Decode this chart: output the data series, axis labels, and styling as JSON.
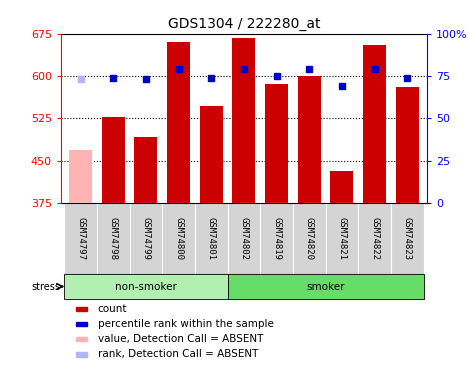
{
  "title": "GDS1304 / 222280_at",
  "samples": [
    "GSM74797",
    "GSM74798",
    "GSM74799",
    "GSM74800",
    "GSM74801",
    "GSM74802",
    "GSM74819",
    "GSM74820",
    "GSM74821",
    "GSM74822",
    "GSM74823"
  ],
  "bar_values": [
    468,
    527,
    492,
    660,
    547,
    668,
    585,
    600,
    432,
    655,
    581
  ],
  "bar_colors": [
    "#ffb3b3",
    "#cc0000",
    "#cc0000",
    "#cc0000",
    "#cc0000",
    "#cc0000",
    "#cc0000",
    "#cc0000",
    "#cc0000",
    "#cc0000",
    "#cc0000"
  ],
  "rank_values": [
    73,
    74,
    73,
    79,
    74,
    79,
    75,
    79,
    69,
    79,
    74
  ],
  "rank_colors": [
    "#b3b3ff",
    "#0000cc",
    "#0000cc",
    "#0000cc",
    "#0000cc",
    "#0000cc",
    "#0000cc",
    "#0000cc",
    "#0000cc",
    "#0000cc",
    "#0000cc"
  ],
  "ylim_left": [
    375,
    675
  ],
  "ylim_right": [
    0,
    100
  ],
  "yticks_left": [
    375,
    450,
    525,
    600,
    675
  ],
  "yticks_right": [
    0,
    25,
    50,
    75,
    100
  ],
  "ytick_labels_right": [
    "0",
    "25",
    "50",
    "75",
    "100%"
  ],
  "hlines": [
    450,
    525,
    600
  ],
  "non_smoker_indices": [
    0,
    1,
    2,
    3,
    4
  ],
  "smoker_indices": [
    5,
    6,
    7,
    8,
    9,
    10
  ],
  "stress_label": "stress",
  "non_smoker_label": "non-smoker",
  "smoker_label": "smoker",
  "non_smoker_color": "#b2f0b2",
  "smoker_color": "#66dd66",
  "group_bg_color": "#d4d4d4",
  "legend_items": [
    {
      "color": "#cc0000",
      "label": "count"
    },
    {
      "color": "#0000cc",
      "label": "percentile rank within the sample"
    },
    {
      "color": "#ffb3b3",
      "label": "value, Detection Call = ABSENT"
    },
    {
      "color": "#b3b3ff",
      "label": "rank, Detection Call = ABSENT"
    }
  ],
  "bar_width": 0.7
}
